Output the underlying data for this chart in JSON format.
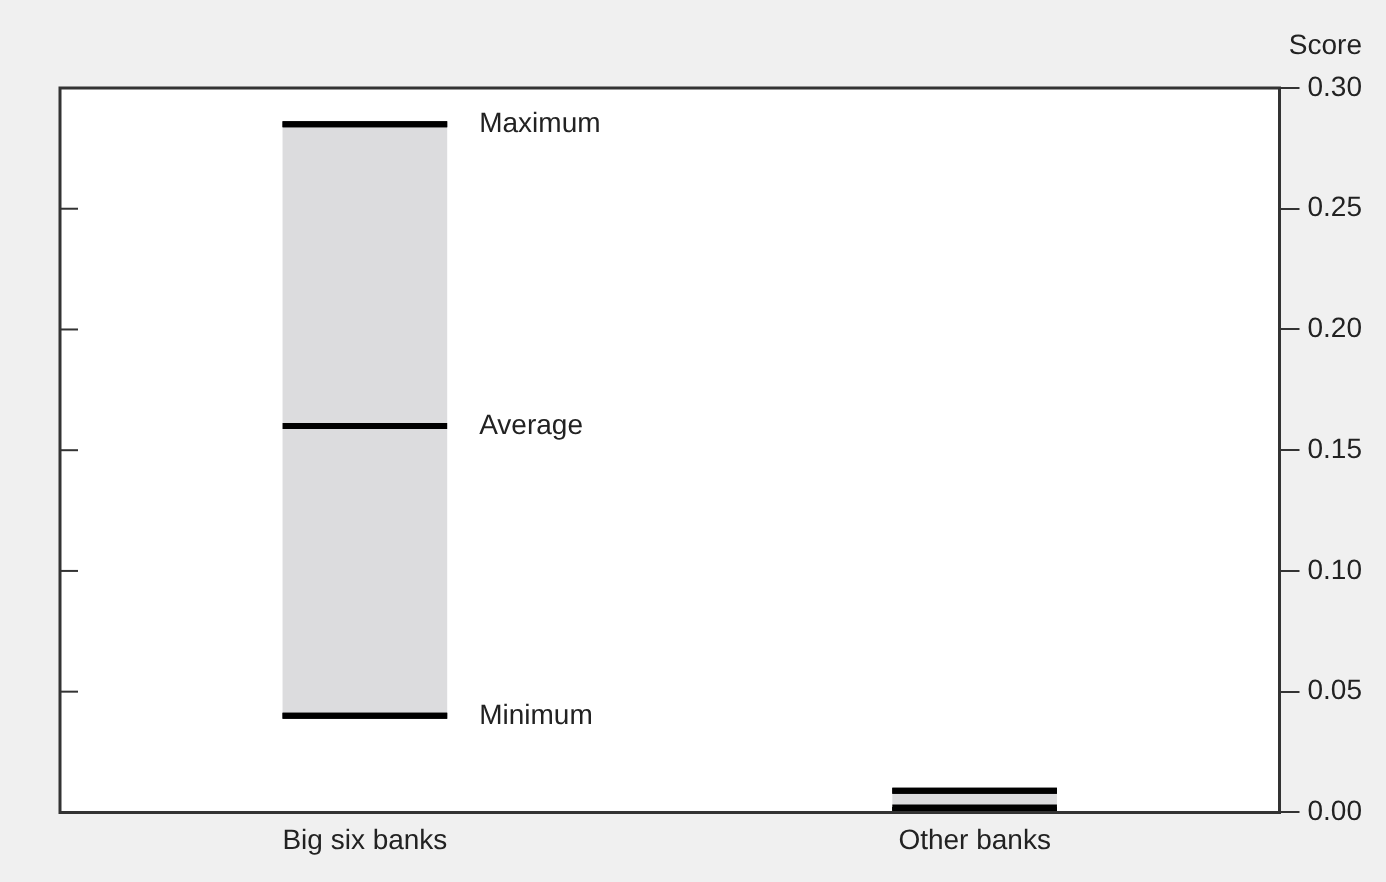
{
  "chart_data": {
    "type": "box",
    "ylabel": "Score",
    "categories": [
      "Big six banks",
      "Other banks"
    ],
    "series": [
      {
        "color": "#dcdcde",
        "boxes": [
          {
            "low": 0.04,
            "q1": 0.04,
            "median": 0.16,
            "q3": 0.285,
            "high": 0.285
          },
          {
            "low": 0.001,
            "q1": 0.001,
            "median": 0.002,
            "q3": 0.009,
            "high": 0.009
          }
        ]
      }
    ],
    "ylim": [
      0,
      0.3
    ],
    "yticks": [
      {
        "value": 0,
        "label": "0.00"
      },
      {
        "value": 0.05,
        "label": "0.05"
      },
      {
        "value": 0.1,
        "label": "0.10"
      },
      {
        "value": 0.15,
        "label": "0.15"
      },
      {
        "value": 0.2,
        "label": "0.20"
      },
      {
        "value": 0.25,
        "label": "0.25"
      },
      {
        "value": 0.3,
        "label": "0.30"
      }
    ],
    "annotations": [
      "Maximum",
      "Average",
      "Minimum"
    ],
    "grid": false,
    "legend": false
  }
}
